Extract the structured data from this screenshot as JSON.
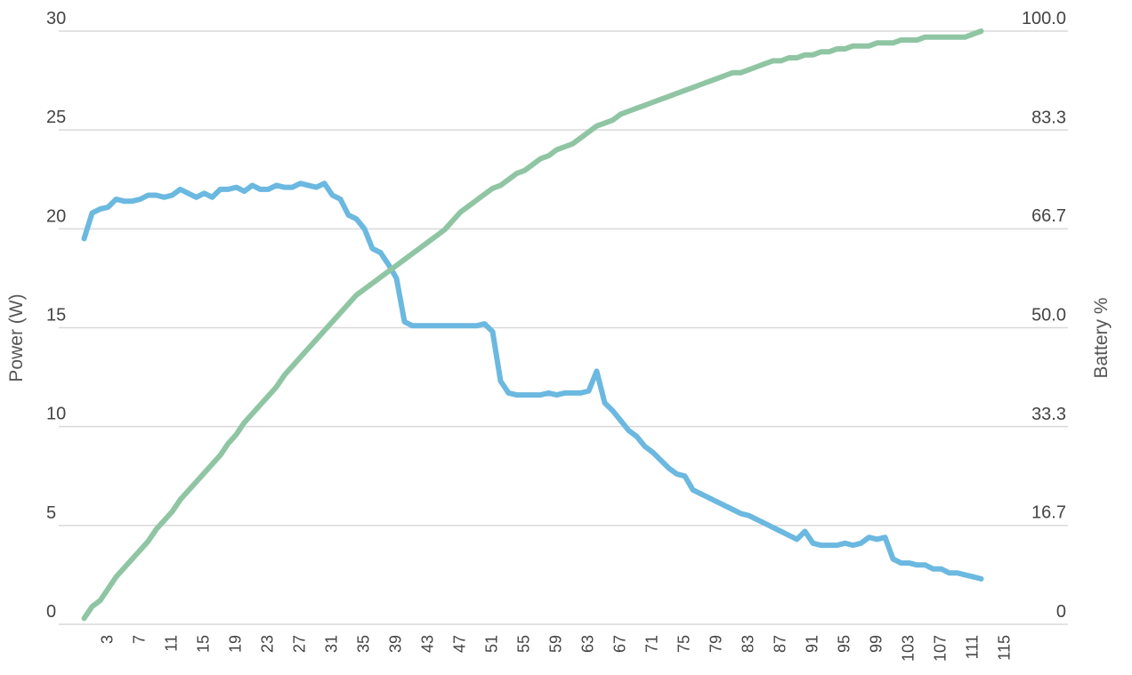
{
  "chart_data": {
    "type": "line",
    "title": "",
    "xlabel": "",
    "ylabel_left": "Power (W)",
    "ylabel_right": "Battery %",
    "xlim": [
      0,
      118
    ],
    "ylim_left": [
      0,
      30
    ],
    "ylim_right": [
      0,
      100
    ],
    "grid": true,
    "legend": "none",
    "x_ticks": [
      3,
      7,
      11,
      15,
      19,
      23,
      27,
      31,
      35,
      39,
      43,
      47,
      51,
      55,
      59,
      63,
      67,
      71,
      75,
      79,
      83,
      87,
      91,
      95,
      99,
      103,
      107,
      111,
      115
    ],
    "x_tick_labels": [
      "3",
      "7",
      "11",
      "15",
      "19",
      "23",
      "27",
      "31",
      "35",
      "39",
      "43",
      "47",
      "51",
      "55",
      "59",
      "63",
      "67",
      "71",
      "75",
      "79",
      "83",
      "87",
      "91",
      "95",
      "99",
      "103",
      "107",
      "111",
      "115"
    ],
    "y_left_ticks": [
      0,
      5,
      10,
      15,
      20,
      25,
      30
    ],
    "y_left_tick_labels": [
      "0",
      "5",
      "10",
      "15",
      "20",
      "25",
      "30"
    ],
    "y_right_ticks": [
      0,
      16.7,
      33.3,
      50,
      66.7,
      83.3,
      100
    ],
    "y_right_tick_labels": [
      "0",
      "16.7",
      "33.3",
      "50.0",
      "66.7",
      "83.3",
      "100.0"
    ],
    "series": [
      {
        "axis": "left",
        "color": "#6bb8e0",
        "x": [
          0,
          1,
          2,
          3,
          4,
          5,
          6,
          7,
          8,
          9,
          10,
          11,
          12,
          13,
          14,
          15,
          16,
          17,
          18,
          19,
          20,
          21,
          22,
          23,
          24,
          25,
          26,
          27,
          28,
          29,
          30,
          31,
          32,
          33,
          34,
          35,
          36,
          37,
          38,
          39,
          40,
          41,
          42,
          43,
          44,
          45,
          46,
          47,
          48,
          49,
          50,
          51,
          52,
          53,
          54,
          55,
          56,
          57,
          58,
          59,
          60,
          61,
          62,
          63,
          64,
          65,
          66,
          67,
          68,
          69,
          70,
          71,
          72,
          73,
          74,
          75,
          76,
          77,
          78,
          79,
          80,
          81,
          82,
          83,
          84,
          85,
          86,
          87,
          88,
          89,
          90,
          91,
          92,
          93,
          94,
          95,
          96,
          97,
          98,
          99,
          100,
          101,
          102,
          103,
          104,
          105,
          106,
          107,
          108,
          109,
          110,
          111,
          112
        ],
        "values": [
          19.5,
          20.8,
          21.0,
          21.1,
          21.5,
          21.4,
          21.4,
          21.5,
          21.7,
          21.7,
          21.6,
          21.7,
          22.0,
          21.8,
          21.6,
          21.8,
          21.6,
          22.0,
          22.0,
          22.1,
          21.9,
          22.2,
          22.0,
          22.0,
          22.2,
          22.1,
          22.1,
          22.3,
          22.2,
          22.1,
          22.3,
          21.7,
          21.5,
          20.7,
          20.5,
          20.0,
          19.0,
          18.8,
          18.2,
          17.5,
          15.3,
          15.1,
          15.1,
          15.1,
          15.1,
          15.1,
          15.1,
          15.1,
          15.1,
          15.1,
          15.2,
          14.8,
          12.3,
          11.7,
          11.6,
          11.6,
          11.6,
          11.6,
          11.7,
          11.6,
          11.7,
          11.7,
          11.7,
          11.8,
          12.8,
          11.2,
          10.8,
          10.3,
          9.8,
          9.5,
          9.0,
          8.7,
          8.3,
          7.9,
          7.6,
          7.5,
          6.8,
          6.6,
          6.4,
          6.2,
          6.0,
          5.8,
          5.6,
          5.5,
          5.3,
          5.1,
          4.9,
          4.7,
          4.5,
          4.3,
          4.7,
          4.1,
          4.0,
          4.0,
          4.0,
          4.1,
          4.0,
          4.1,
          4.4,
          4.3,
          4.4,
          3.3,
          3.1,
          3.1,
          3.0,
          3.0,
          2.8,
          2.8,
          2.6,
          2.6,
          2.5,
          2.4,
          2.3
        ]
      },
      {
        "axis": "right",
        "color": "#8fc5a3",
        "x": [
          0,
          1,
          2,
          3,
          4,
          5,
          6,
          7,
          8,
          9,
          10,
          11,
          12,
          13,
          14,
          15,
          16,
          17,
          18,
          19,
          20,
          21,
          22,
          23,
          24,
          25,
          26,
          27,
          28,
          29,
          30,
          31,
          32,
          33,
          34,
          35,
          36,
          37,
          38,
          39,
          40,
          41,
          42,
          43,
          44,
          45,
          46,
          47,
          48,
          49,
          50,
          51,
          52,
          53,
          54,
          55,
          56,
          57,
          58,
          59,
          60,
          61,
          62,
          63,
          64,
          65,
          66,
          67,
          68,
          69,
          70,
          71,
          72,
          73,
          74,
          75,
          76,
          77,
          78,
          79,
          80,
          81,
          82,
          83,
          84,
          85,
          86,
          87,
          88,
          89,
          90,
          91,
          92,
          93,
          94,
          95,
          96,
          97,
          98,
          99,
          100,
          101,
          102,
          103,
          104,
          105,
          106,
          107,
          108,
          109,
          110,
          111,
          112
        ],
        "values": [
          1.0,
          3.0,
          4.0,
          6.0,
          8.0,
          9.5,
          11.0,
          12.5,
          14.0,
          16.0,
          17.5,
          19.0,
          21.0,
          22.5,
          24.0,
          25.5,
          27.0,
          28.5,
          30.5,
          32.0,
          34.0,
          35.5,
          37.0,
          38.5,
          40.0,
          42.0,
          43.5,
          45.0,
          46.5,
          48.0,
          49.5,
          51.0,
          52.5,
          54.0,
          55.5,
          56.5,
          57.5,
          58.5,
          59.5,
          60.5,
          61.5,
          62.5,
          63.5,
          64.5,
          65.5,
          66.5,
          68.0,
          69.5,
          70.5,
          71.5,
          72.5,
          73.5,
          74.0,
          75.0,
          76.0,
          76.5,
          77.5,
          78.5,
          79.0,
          80.0,
          80.5,
          81.0,
          82.0,
          83.0,
          84.0,
          84.5,
          85.0,
          86.0,
          86.5,
          87.0,
          87.5,
          88.0,
          88.5,
          89.0,
          89.5,
          90.0,
          90.5,
          91.0,
          91.5,
          92.0,
          92.5,
          93.0,
          93.0,
          93.5,
          94.0,
          94.5,
          95.0,
          95.0,
          95.5,
          95.5,
          96.0,
          96.0,
          96.5,
          96.5,
          97.0,
          97.0,
          97.5,
          97.5,
          97.5,
          98.0,
          98.0,
          98.0,
          98.5,
          98.5,
          98.5,
          99.0,
          99.0,
          99.0,
          99.0,
          99.0,
          99.0,
          99.5,
          100.0
        ]
      }
    ]
  }
}
